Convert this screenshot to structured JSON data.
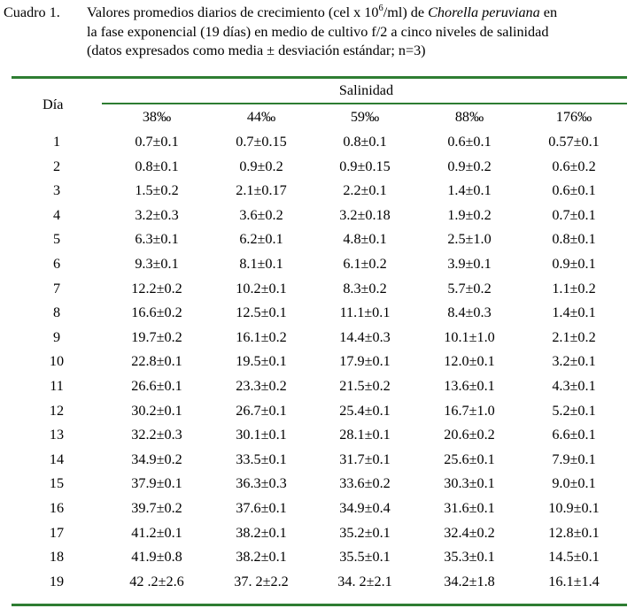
{
  "caption": {
    "label": "Cuadro 1.",
    "line1_a": "Valores promedios diarios de crecimiento (cel x 10",
    "line1_sup": "6",
    "line1_b": "/ml) de ",
    "line1_italic": "Chorella peruviana",
    "line1_c": " en",
    "line2": "la fase exponencial (19 días) en medio de cultivo f/2 a cinco niveles de salinidad",
    "line3": "(datos expresados como media ± desviación estándar; n=3)"
  },
  "table": {
    "day_header": "Día",
    "group_header": "Salinidad",
    "columns": [
      "38‰",
      "44‰",
      "59‰",
      "88‰",
      "176‰"
    ],
    "rows": [
      {
        "day": "1",
        "values": [
          "0.7±0.1",
          "0.7±0.15",
          "0.8±0.1",
          "0.6±0.1",
          "0.57±0.1"
        ]
      },
      {
        "day": "2",
        "values": [
          "0.8±0.1",
          "0.9±0.2",
          "0.9±0.15",
          "0.9±0.2",
          "0.6±0.2"
        ]
      },
      {
        "day": "3",
        "values": [
          "1.5±0.2",
          "2.1±0.17",
          "2.2±0.1",
          "1.4±0.1",
          "0.6±0.1"
        ]
      },
      {
        "day": "4",
        "values": [
          "3.2±0.3",
          "3.6±0.2",
          "3.2±0.18",
          "1.9±0.2",
          "0.7±0.1"
        ]
      },
      {
        "day": "5",
        "values": [
          "6.3±0.1",
          "6.2±0.1",
          "4.8±0.1",
          "2.5±1.0",
          "0.8±0.1"
        ]
      },
      {
        "day": "6",
        "values": [
          "9.3±0.1",
          "8.1±0.1",
          "6.1±0.2",
          "3.9±0.1",
          "0.9±0.1"
        ]
      },
      {
        "day": "7",
        "values": [
          "12.2±0.2",
          "10.2±0.1",
          "8.3±0.2",
          "5.7±0.2",
          "1.1±0.2"
        ]
      },
      {
        "day": "8",
        "values": [
          "16.6±0.2",
          "12.5±0.1",
          "11.1±0.1",
          "8.4±0.3",
          "1.4±0.1"
        ]
      },
      {
        "day": "9",
        "values": [
          "19.7±0.2",
          "16.1±0.2",
          "14.4±0.3",
          "10.1±1.0",
          "2.1±0.2"
        ]
      },
      {
        "day": "10",
        "values": [
          "22.8±0.1",
          "19.5±0.1",
          "17.9±0.1",
          "12.0±0.1",
          "3.2±0.1"
        ]
      },
      {
        "day": "11",
        "values": [
          "26.6±0.1",
          "23.3±0.2",
          "21.5±0.2",
          "13.6±0.1",
          "4.3±0.1"
        ]
      },
      {
        "day": "12",
        "values": [
          "30.2±0.1",
          "26.7±0.1",
          "25.4±0.1",
          "16.7±1.0",
          "5.2±0.1"
        ]
      },
      {
        "day": "13",
        "values": [
          "32.2±0.3",
          "30.1±0.1",
          "28.1±0.1",
          "20.6±0.2",
          "6.6±0.1"
        ]
      },
      {
        "day": "14",
        "values": [
          "34.9±0.2",
          "33.5±0.1",
          "31.7±0.1",
          "25.6±0.1",
          "7.9±0.1"
        ]
      },
      {
        "day": "15",
        "values": [
          "37.9±0.1",
          "36.3±0.3",
          "33.6±0.2",
          "30.3±0.1",
          "9.0±0.1"
        ]
      },
      {
        "day": "16",
        "values": [
          "39.7±0.2",
          "37.6±0.1",
          "34.9±0.4",
          "31.6±0.1",
          "10.9±0.1"
        ]
      },
      {
        "day": "17",
        "values": [
          "41.2±0.1",
          "38.2±0.1",
          "35.2±0.1",
          "32.4±0.2",
          "12.8±0.1"
        ]
      },
      {
        "day": "18",
        "values": [
          "41.9±0.8",
          "38.2±0.1",
          "35.5±0.1",
          "35.3±0.1",
          "14.5±0.1"
        ]
      },
      {
        "day": "19",
        "values": [
          "42 .2±2.6",
          "37. 2±2.2",
          "34. 2±2.1",
          "34.2±1.8",
          "16.1±1.4"
        ]
      }
    ],
    "rule_color": "#2e7d32"
  }
}
